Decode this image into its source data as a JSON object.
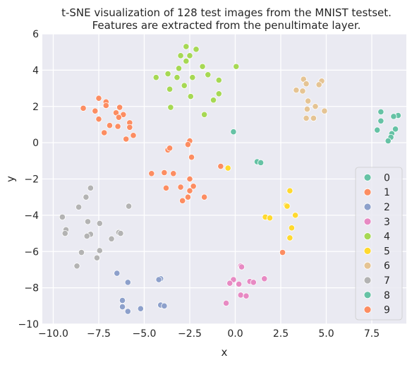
{
  "chart_data": {
    "type": "scatter",
    "title": "t-SNE visualization of 128 test images from the MNIST testset.",
    "subtitle": "Features are extracted from the penultimate layer.",
    "xlabel": "x",
    "ylabel": "y",
    "xlim": [
      -10.6,
      9.4
    ],
    "ylim": [
      -10,
      6
    ],
    "xticks": [
      "−10.0",
      "−7.5",
      "−5.0",
      "−2.5",
      "0.0",
      "2.5",
      "5.0",
      "7.5"
    ],
    "xtick_values": [
      -10,
      -7.5,
      -5,
      -2.5,
      0,
      2.5,
      5,
      7.5
    ],
    "yticks": [
      "−10",
      "−8",
      "−6",
      "−4",
      "−2",
      "0",
      "2",
      "4",
      "6"
    ],
    "ytick_values": [
      -10,
      -8,
      -6,
      -4,
      -2,
      0,
      2,
      4,
      6
    ],
    "grid": true,
    "background": "#eaeaf2",
    "legend_position": "lower-right",
    "series": [
      {
        "name": "0",
        "color": "#66c2a5",
        "points": [
          [
            -0.1,
            0.6
          ],
          [
            1.2,
            -1.05
          ],
          [
            1.4,
            -1.1
          ]
        ]
      },
      {
        "name": "1",
        "color": "#fc8d62",
        "points": [
          [
            -2.5,
            0.1
          ],
          [
            -2.6,
            -0.1
          ],
          [
            -3.7,
            -0.4
          ],
          [
            -3.6,
            -0.3
          ],
          [
            -2.4,
            -0.8
          ],
          [
            -0.8,
            -1.3
          ],
          [
            -4.6,
            -1.7
          ],
          [
            -3.9,
            -1.65
          ],
          [
            -3.4,
            -1.7
          ],
          [
            -2.5,
            -2.0
          ],
          [
            -2.3,
            -2.4
          ],
          [
            -3.0,
            -2.45
          ],
          [
            -3.8,
            -2.5
          ],
          [
            -2.5,
            -2.65
          ],
          [
            -1.7,
            -3.0
          ],
          [
            -2.6,
            -3.0
          ],
          [
            -2.9,
            -3.2
          ],
          [
            2.6,
            -6.05
          ]
        ]
      },
      {
        "name": "2",
        "color": "#8da0cb",
        "points": [
          [
            -6.5,
            -7.2
          ],
          [
            -4.1,
            -7.5
          ],
          [
            -4.2,
            -7.55
          ],
          [
            -5.9,
            -7.7
          ],
          [
            -6.2,
            -8.7
          ],
          [
            -6.2,
            -9.05
          ],
          [
            -5.9,
            -9.3
          ],
          [
            -5.2,
            -9.15
          ],
          [
            -4.1,
            -8.95
          ],
          [
            -3.9,
            -9.0
          ]
        ]
      },
      {
        "name": "3",
        "color": "#e78ac3",
        "points": [
          [
            0.3,
            -6.8
          ],
          [
            0.35,
            -6.85
          ],
          [
            1.6,
            -7.5
          ],
          [
            -0.1,
            -7.55
          ],
          [
            0.8,
            -7.65
          ],
          [
            1.0,
            -7.7
          ],
          [
            -0.3,
            -7.75
          ],
          [
            0.2,
            -7.8
          ],
          [
            0.3,
            -8.4
          ],
          [
            0.6,
            -8.45
          ],
          [
            -0.5,
            -8.85
          ]
        ]
      },
      {
        "name": "4",
        "color": "#a6d854",
        "points": [
          [
            -2.7,
            5.3
          ],
          [
            -2.15,
            5.15
          ],
          [
            -3.0,
            4.8
          ],
          [
            -2.5,
            4.8
          ],
          [
            -2.7,
            4.5
          ],
          [
            -1.8,
            4.2
          ],
          [
            0.05,
            4.2
          ],
          [
            -3.1,
            4.1
          ],
          [
            -3.7,
            3.8
          ],
          [
            -1.5,
            3.75
          ],
          [
            -3.2,
            3.6
          ],
          [
            -4.35,
            3.6
          ],
          [
            -2.35,
            3.6
          ],
          [
            -0.9,
            3.45
          ],
          [
            -2.8,
            3.15
          ],
          [
            -3.6,
            2.95
          ],
          [
            -0.9,
            2.7
          ],
          [
            -2.45,
            2.55
          ],
          [
            -1.2,
            2.35
          ],
          [
            -3.55,
            1.95
          ],
          [
            -1.7,
            1.55
          ]
        ]
      },
      {
        "name": "5",
        "color": "#ffd92f",
        "points": [
          [
            3.0,
            -2.65
          ],
          [
            2.8,
            -3.45
          ],
          [
            2.85,
            -3.5
          ],
          [
            3.3,
            -4.0
          ],
          [
            1.65,
            -4.1
          ],
          [
            1.9,
            -4.15
          ],
          [
            3.1,
            -4.7
          ],
          [
            3.0,
            -5.25
          ],
          [
            -0.4,
            -1.4
          ]
        ]
      },
      {
        "name": "6",
        "color": "#e5c494",
        "points": [
          [
            3.75,
            3.5
          ],
          [
            4.75,
            3.4
          ],
          [
            3.9,
            3.25
          ],
          [
            4.6,
            3.2
          ],
          [
            3.35,
            2.9
          ],
          [
            3.7,
            2.85
          ],
          [
            4.0,
            2.3
          ],
          [
            4.4,
            2.0
          ],
          [
            3.95,
            1.85
          ],
          [
            4.9,
            1.75
          ],
          [
            3.9,
            1.35
          ],
          [
            4.3,
            1.35
          ]
        ]
      },
      {
        "name": "7",
        "color": "#b3b3b3",
        "points": [
          [
            -7.95,
            -2.5
          ],
          [
            -8.2,
            -3.0
          ],
          [
            -5.85,
            -3.5
          ],
          [
            -8.6,
            -3.55
          ],
          [
            -9.5,
            -4.1
          ],
          [
            -8.1,
            -4.35
          ],
          [
            -7.45,
            -4.45
          ],
          [
            -9.3,
            -4.8
          ],
          [
            -9.35,
            -5.0
          ],
          [
            -6.4,
            -4.95
          ],
          [
            -6.3,
            -5.0
          ],
          [
            -7.95,
            -5.05
          ],
          [
            -8.15,
            -5.15
          ],
          [
            -6.8,
            -5.3
          ],
          [
            -7.45,
            -5.95
          ],
          [
            -8.45,
            -6.05
          ],
          [
            -7.6,
            -6.35
          ],
          [
            -8.7,
            -6.8
          ]
        ]
      },
      {
        "name": "8",
        "color": "#66c2a5",
        "points": [
          [
            8.0,
            1.7
          ],
          [
            8.95,
            1.5
          ],
          [
            8.7,
            1.45
          ],
          [
            8.0,
            1.2
          ],
          [
            8.8,
            0.75
          ],
          [
            7.8,
            0.7
          ],
          [
            8.6,
            0.5
          ],
          [
            8.55,
            0.3
          ],
          [
            8.4,
            0.1
          ]
        ]
      },
      {
        "name": "9",
        "color": "#fc8d62",
        "points": [
          [
            -7.5,
            2.45
          ],
          [
            -7.1,
            2.25
          ],
          [
            -7.1,
            2.05
          ],
          [
            -6.35,
            1.95
          ],
          [
            -8.35,
            1.9
          ],
          [
            -7.7,
            1.75
          ],
          [
            -6.55,
            1.65
          ],
          [
            -6.15,
            1.55
          ],
          [
            -6.4,
            1.4
          ],
          [
            -7.5,
            1.3
          ],
          [
            -5.8,
            1.1
          ],
          [
            -6.9,
            0.95
          ],
          [
            -6.45,
            0.9
          ],
          [
            -5.8,
            0.85
          ],
          [
            -7.2,
            0.55
          ],
          [
            -5.6,
            0.4
          ],
          [
            -6.0,
            0.2
          ]
        ]
      }
    ]
  }
}
